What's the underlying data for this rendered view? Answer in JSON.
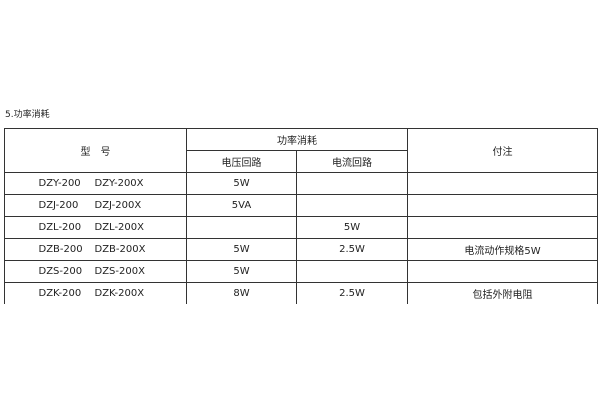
{
  "section_title": "5.功率消耗",
  "header": {
    "model": "型　号",
    "power": "功率消耗",
    "voltage": "电压回路",
    "current": "电流回路",
    "note": "付注"
  },
  "rows": [
    {
      "model_a": "DZY-200",
      "model_b": "DZY-200X",
      "voltage": "5W",
      "current": "",
      "note": ""
    },
    {
      "model_a": "DZJ-200",
      "model_b": "DZJ-200X",
      "voltage": "5VA",
      "current": "",
      "note": ""
    },
    {
      "model_a": "DZL-200",
      "model_b": "DZL-200X",
      "voltage": "",
      "current": "5W",
      "note": ""
    },
    {
      "model_a": "DZB-200",
      "model_b": "DZB-200X",
      "voltage": "5W",
      "current": "2.5W",
      "note": "电流动作规格5W"
    },
    {
      "model_a": "DZS-200",
      "model_b": "DZS-200X",
      "voltage": "5W",
      "current": "",
      "note": ""
    },
    {
      "model_a": "DZK-200",
      "model_b": "DZK-200X",
      "voltage": "8W",
      "current": "2.5W",
      "note": "包括外附电阻"
    }
  ]
}
